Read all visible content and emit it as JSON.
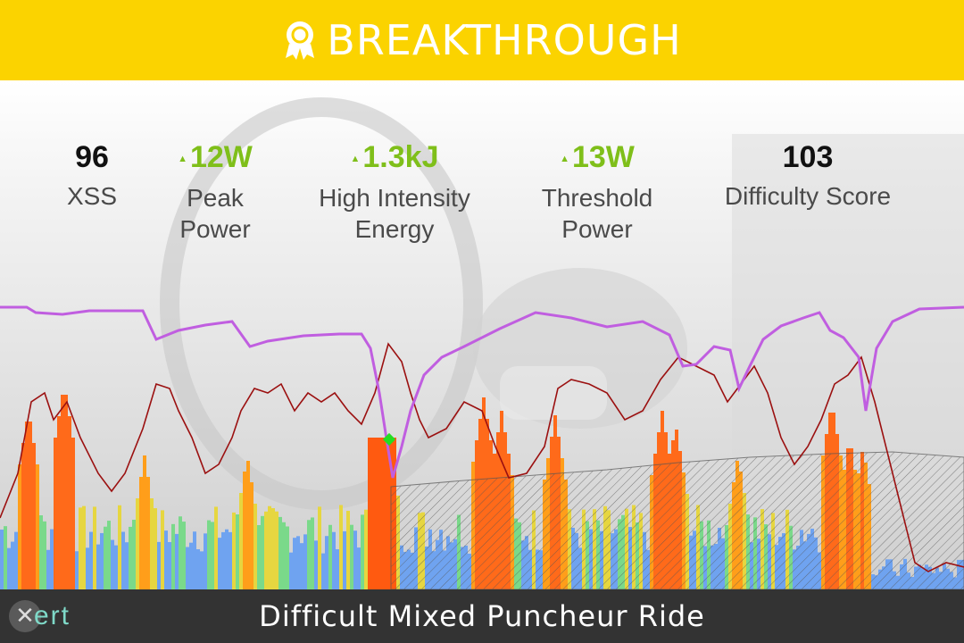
{
  "banner": {
    "title": "BREAKTHROUGH",
    "icon": "award-ribbon-icon"
  },
  "stats": [
    {
      "value": "96",
      "label": "XSS",
      "trend": "none"
    },
    {
      "value": "12W",
      "label": "Peak\nPower",
      "trend": "up"
    },
    {
      "value": "1.3kJ",
      "label": "High Intensity\nEnergy",
      "trend": "up"
    },
    {
      "value": "13W",
      "label": "Threshold\nPower",
      "trend": "up"
    },
    {
      "value": "103",
      "label": "Difficulty Score",
      "trend": "none"
    }
  ],
  "footer": {
    "ride_name": "Difficult Mixed Puncheur Ride",
    "logo_text": "ert",
    "logo_icon": "x-logo-icon"
  },
  "colors": {
    "banner": "#fbd300",
    "trend_up": "#7fbf1a",
    "footer": "#333333",
    "mpa_line": "#c05ee0",
    "hr_line": "#9b1010",
    "breakthrough_marker": "#22dd22"
  }
}
